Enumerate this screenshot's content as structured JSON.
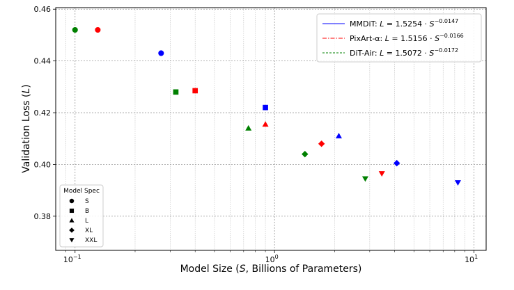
{
  "chart_data": {
    "type": "scatter",
    "x_scale": "log",
    "xlim": [
      0.08,
      11.5
    ],
    "ylim": [
      0.3668,
      0.4606
    ],
    "y_ticks": [
      0.38,
      0.4,
      0.42,
      0.44,
      0.46
    ],
    "y_tick_labels": [
      "0.38",
      "0.40",
      "0.42",
      "0.44",
      "0.46"
    ],
    "x_ticks": [
      0.1,
      1,
      10
    ],
    "x_tick_labels": [
      "10",
      "10",
      "10"
    ],
    "x_tick_exponents": [
      "−1",
      "0",
      "1"
    ],
    "xlabel_parts": [
      "Model Size (",
      "S",
      ", Billions of Parameters)"
    ],
    "ylabel_parts": [
      "Validation Loss (",
      "L",
      ")"
    ],
    "grid": true,
    "series": [
      {
        "name": "MMDiT",
        "color": "#0000ff",
        "line_style": "solid",
        "fit": {
          "a": 1.5254,
          "b": 0.0147
        },
        "legend_prefix": "MMDiT: ",
        "legend_formula": "1.5254 · ",
        "legend_exponent": "−0.0147",
        "points": [
          {
            "x": 0.27,
            "y": 0.443,
            "marker": "S"
          },
          {
            "x": 0.9,
            "y": 0.422,
            "marker": "B"
          },
          {
            "x": 2.1,
            "y": 0.411,
            "marker": "L"
          },
          {
            "x": 4.1,
            "y": 0.4005,
            "marker": "XL"
          },
          {
            "x": 8.3,
            "y": 0.393,
            "marker": "XXL"
          }
        ]
      },
      {
        "name": "PixArt-α",
        "color": "#ff0000",
        "line_style": "dashdot",
        "fit": {
          "a": 1.5156,
          "b": 0.0166
        },
        "legend_prefix": "PixArt-α: ",
        "legend_formula": "1.5156 · ",
        "legend_exponent": "−0.0166",
        "points": [
          {
            "x": 0.13,
            "y": 0.452,
            "marker": "S"
          },
          {
            "x": 0.4,
            "y": 0.4285,
            "marker": "B"
          },
          {
            "x": 0.9,
            "y": 0.4155,
            "marker": "L"
          },
          {
            "x": 1.72,
            "y": 0.408,
            "marker": "XL"
          },
          {
            "x": 3.45,
            "y": 0.3965,
            "marker": "XXL"
          }
        ]
      },
      {
        "name": "DiT-Air",
        "color": "#008000",
        "line_style": "dashed",
        "fit": {
          "a": 1.5072,
          "b": 0.0172
        },
        "legend_prefix": "DiT-Air: ",
        "legend_formula": "1.5072 · ",
        "legend_exponent": "−0.0172",
        "points": [
          {
            "x": 0.1,
            "y": 0.452,
            "marker": "S"
          },
          {
            "x": 0.32,
            "y": 0.428,
            "marker": "B"
          },
          {
            "x": 0.74,
            "y": 0.414,
            "marker": "L"
          },
          {
            "x": 1.42,
            "y": 0.404,
            "marker": "XL"
          },
          {
            "x": 2.85,
            "y": 0.3945,
            "marker": "XXL"
          }
        ]
      }
    ],
    "model_spec_legend": {
      "title": "Model Spec",
      "entries": [
        {
          "marker": "S",
          "label": "S"
        },
        {
          "marker": "B",
          "label": "B"
        },
        {
          "marker": "L",
          "label": "L"
        },
        {
          "marker": "XL",
          "label": "XL"
        },
        {
          "marker": "XXL",
          "label": "XXL"
        }
      ]
    },
    "legend_var_L": "L",
    "legend_var_S": "S",
    "legend_eq": " = ",
    "legend_placement": "top-right",
    "spec_legend_placement": "bottom-left"
  }
}
